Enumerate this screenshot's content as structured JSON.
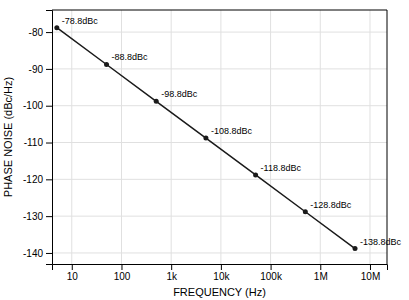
{
  "chart_data": {
    "type": "line",
    "x": [
      5,
      50,
      500,
      5000,
      50000,
      500000,
      5000000
    ],
    "values": [
      -78.8,
      -88.8,
      -98.8,
      -108.8,
      -118.8,
      -128.8,
      -138.8
    ],
    "value_labels": [
      "-78.8dBc",
      "-88.8dBc",
      "-98.8dBc",
      "-108.8dBc",
      "-118.8dBc",
      "-128.8dBc",
      "-138.8dBc"
    ],
    "data_labels": true,
    "xlabel": "FREQUENCY (Hz)",
    "ylabel": "PHASE NOISE (dBc/Hz)",
    "log": "x",
    "xlim": [
      4,
      22000000.0
    ],
    "ylim": [
      -143,
      -74
    ],
    "xticks": [
      10,
      100,
      {
        "value": 1000,
        "label": "1k"
      },
      {
        "value": 10000,
        "label": "10k"
      },
      {
        "value": 100000,
        "label": "100k"
      },
      {
        "value": 1000000,
        "label": "1M"
      },
      {
        "value": 10000000,
        "label": "10M"
      }
    ],
    "yticks": [
      -80,
      -90,
      -100,
      -110,
      -120,
      -130,
      -140
    ],
    "grid": true,
    "color": "#1a1a1a",
    "marker": "circle"
  }
}
